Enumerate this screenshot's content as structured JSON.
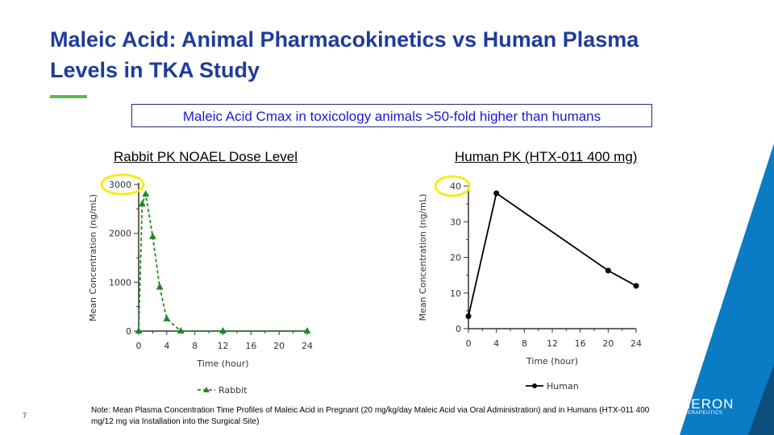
{
  "slide": {
    "title": "Maleic Acid: Animal Pharmacokinetics vs Human Plasma Levels in TKA Study",
    "callout": "Maleic Acid Cmax in toxicology animals >50-fold higher than humans",
    "note": "Note: Mean Plasma Concentration Time Profiles of Maleic Acid in Pregnant (20 mg/kg/day Maleic Acid via Oral Administration) and in Humans (HTX-011 400 mg/12 mg via Installation into the Surgical Site)",
    "page_number": "7",
    "logo_text": "HERON",
    "logo_subtext": "THERAPEUTICS",
    "colors": {
      "title": "#1f3c99",
      "accent": "#5cb848",
      "brand_blue": "#0a7cc4",
      "brand_dark": "#0b4f7c",
      "highlight": "#f5ee1a",
      "rabbit": "#1e8a1e"
    }
  },
  "chart_data": [
    {
      "type": "line",
      "title": "Rabbit PK NOAEL Dose Level",
      "xlabel": "Time (hour)",
      "ylabel": "Mean Concentration (ng/mL)",
      "xlim": [
        0,
        24
      ],
      "ylim": [
        0,
        3000
      ],
      "xticks": [
        "0",
        "4",
        "8",
        "12",
        "16",
        "20",
        "24"
      ],
      "yticks": [
        "0",
        "1000",
        "2000",
        "3000"
      ],
      "highlighted_tick": "3000",
      "legend": "top-bottom",
      "series": [
        {
          "name": "Rabbit",
          "x": [
            0,
            0.5,
            1,
            2,
            3,
            4,
            6,
            12,
            24
          ],
          "y": [
            0,
            2600,
            2800,
            1930,
            900,
            250,
            0,
            0,
            0
          ]
        }
      ]
    },
    {
      "type": "line",
      "title": "Human PK (HTX-011 400 mg)",
      "xlabel": "Time (hour)",
      "ylabel": "Mean Concentration (ng/mL)",
      "xlim": [
        0,
        24
      ],
      "ylim": [
        0,
        40
      ],
      "xticks": [
        "0",
        "4",
        "8",
        "12",
        "16",
        "20",
        "24"
      ],
      "yticks": [
        "0",
        "10",
        "20",
        "30",
        "40"
      ],
      "highlighted_tick": "40",
      "legend": "bottom",
      "series": [
        {
          "name": "Human",
          "x": [
            0,
            4,
            20,
            24
          ],
          "y": [
            3.5,
            38,
            16.3,
            12
          ]
        }
      ]
    }
  ]
}
